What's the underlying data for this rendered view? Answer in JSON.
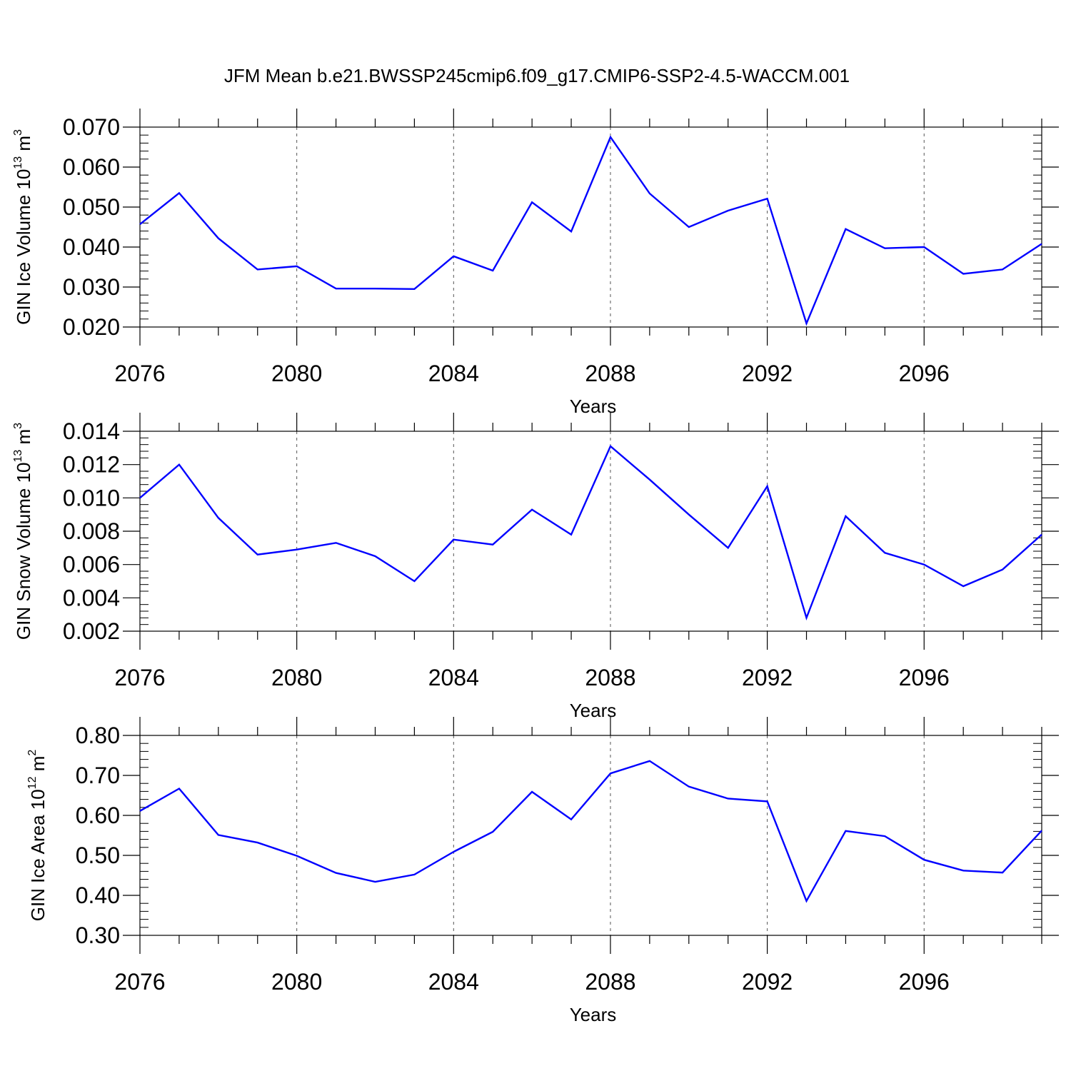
{
  "title": "JFM Mean b.e21.BWSSP245cmip6.f09_g17.CMIP6-SSP2-4.5-WACCM.001",
  "colors": {
    "series": "#0000ff",
    "axis": "#000000",
    "grid": "#000000"
  },
  "chart_data": [
    {
      "type": "line",
      "ylabel_main": "GIN Ice Volume 10",
      "ylabel_exp": "13",
      "ylabel_unit": " m",
      "ylabel_unit_exp": "3",
      "xlabel": "Years",
      "xlim": [
        2076,
        2099
      ],
      "ylim": [
        0.02,
        0.07
      ],
      "x_ticks": [
        2076,
        2080,
        2084,
        2088,
        2092,
        2096
      ],
      "x_tick_labels": [
        "2076",
        "2080",
        "2084",
        "2088",
        "2092",
        "2096"
      ],
      "y_ticks": [
        0.02,
        0.03,
        0.04,
        0.05,
        0.06,
        0.07
      ],
      "y_tick_labels": [
        "0.020",
        "0.030",
        "0.040",
        "0.050",
        "0.060",
        "0.070"
      ],
      "grid": "vertical dashed at major x ticks",
      "x": [
        2076,
        2077,
        2078,
        2079,
        2080,
        2081,
        2082,
        2083,
        2084,
        2085,
        2086,
        2087,
        2088,
        2089,
        2090,
        2091,
        2092,
        2093,
        2094,
        2095,
        2096,
        2097,
        2098,
        2099
      ],
      "values": [
        0.0457,
        0.0535,
        0.0422,
        0.0344,
        0.0352,
        0.0296,
        0.0296,
        0.0295,
        0.0377,
        0.0341,
        0.0512,
        0.0439,
        0.0675,
        0.0534,
        0.045,
        0.0491,
        0.0521,
        0.0209,
        0.0445,
        0.0397,
        0.04,
        0.0333,
        0.0344,
        0.0408
      ]
    },
    {
      "type": "line",
      "ylabel_main": "GIN Snow Volume 10",
      "ylabel_exp": "13",
      "ylabel_unit": " m",
      "ylabel_unit_exp": "3",
      "xlabel": "Years",
      "xlim": [
        2076,
        2099
      ],
      "ylim": [
        0.002,
        0.014
      ],
      "x_ticks": [
        2076,
        2080,
        2084,
        2088,
        2092,
        2096
      ],
      "x_tick_labels": [
        "2076",
        "2080",
        "2084",
        "2088",
        "2092",
        "2096"
      ],
      "y_ticks": [
        0.002,
        0.004,
        0.006,
        0.008,
        0.01,
        0.012,
        0.014
      ],
      "y_tick_labels": [
        "0.002",
        "0.004",
        "0.006",
        "0.008",
        "0.010",
        "0.012",
        "0.014"
      ],
      "grid": "vertical dashed at major x ticks",
      "x": [
        2076,
        2077,
        2078,
        2079,
        2080,
        2081,
        2082,
        2083,
        2084,
        2085,
        2086,
        2087,
        2088,
        2089,
        2090,
        2091,
        2092,
        2093,
        2094,
        2095,
        2096,
        2097,
        2098,
        2099
      ],
      "values": [
        0.01,
        0.012,
        0.0088,
        0.0066,
        0.0069,
        0.0073,
        0.0065,
        0.005,
        0.0075,
        0.0072,
        0.0093,
        0.0078,
        0.0131,
        0.0111,
        0.009,
        0.007,
        0.0107,
        0.0028,
        0.0089,
        0.0067,
        0.006,
        0.0047,
        0.0057,
        0.0078
      ]
    },
    {
      "type": "line",
      "ylabel_main": "GIN Ice Area 10",
      "ylabel_exp": "12",
      "ylabel_unit": " m",
      "ylabel_unit_exp": "2",
      "xlabel": "Years",
      "xlim": [
        2076,
        2099
      ],
      "ylim": [
        0.3,
        0.8
      ],
      "x_ticks": [
        2076,
        2080,
        2084,
        2088,
        2092,
        2096
      ],
      "x_tick_labels": [
        "2076",
        "2080",
        "2084",
        "2088",
        "2092",
        "2096"
      ],
      "y_ticks": [
        0.3,
        0.4,
        0.5,
        0.6,
        0.7,
        0.8
      ],
      "y_tick_labels": [
        "0.30",
        "0.40",
        "0.50",
        "0.60",
        "0.70",
        "0.80"
      ],
      "grid": "vertical dashed at major x ticks",
      "x": [
        2076,
        2077,
        2078,
        2079,
        2080,
        2081,
        2082,
        2083,
        2084,
        2085,
        2086,
        2087,
        2088,
        2089,
        2090,
        2091,
        2092,
        2093,
        2094,
        2095,
        2096,
        2097,
        2098,
        2099
      ],
      "values": [
        0.611,
        0.667,
        0.551,
        0.532,
        0.499,
        0.456,
        0.434,
        0.452,
        0.509,
        0.559,
        0.659,
        0.59,
        0.705,
        0.736,
        0.672,
        0.642,
        0.635,
        0.386,
        0.561,
        0.548,
        0.489,
        0.462,
        0.457,
        0.562
      ]
    }
  ]
}
